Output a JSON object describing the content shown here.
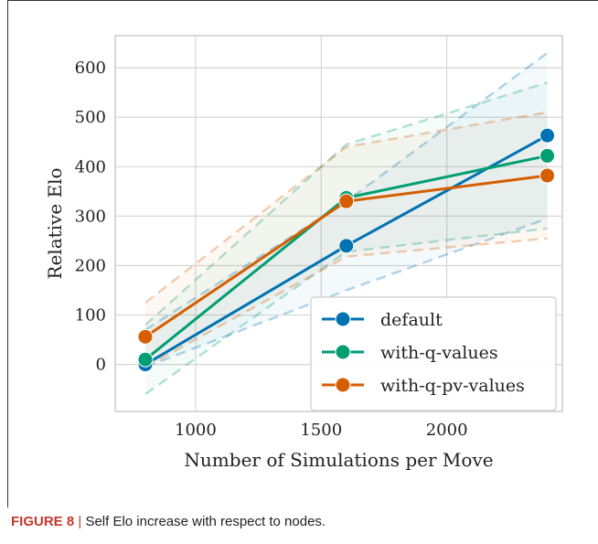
{
  "chart_data": {
    "type": "line",
    "title": "",
    "xlabel": "Number of Simulations per Move",
    "ylabel": "Relative Elo",
    "xlim": [
      680,
      2460
    ],
    "ylim": [
      -95,
      665
    ],
    "xticks": [
      1000,
      1500,
      2000
    ],
    "yticks": [
      0,
      100,
      200,
      300,
      400,
      500,
      600
    ],
    "grid": true,
    "legend_position": "lower-right",
    "x": [
      800,
      1600,
      2400
    ],
    "series": [
      {
        "name": "default",
        "color": "#0072b2",
        "values": [
          0,
          240,
          463
        ],
        "lower": [
          -5,
          150,
          295
        ],
        "upper": [
          70,
          330,
          630
        ]
      },
      {
        "name": "with-q-values",
        "color": "#009e73",
        "values": [
          10,
          337,
          422
        ],
        "lower": [
          -60,
          228,
          275
        ],
        "upper": [
          80,
          445,
          570
        ]
      },
      {
        "name": "with-q-pv-values",
        "color": "#d55e00",
        "values": [
          56,
          330,
          382
        ],
        "lower": [
          -5,
          218,
          255
        ],
        "upper": [
          125,
          440,
          510
        ]
      }
    ]
  },
  "caption": {
    "figure_label": "FIGURE 8",
    "separator": "|",
    "text": "Self Elo increase with respect to nodes."
  }
}
